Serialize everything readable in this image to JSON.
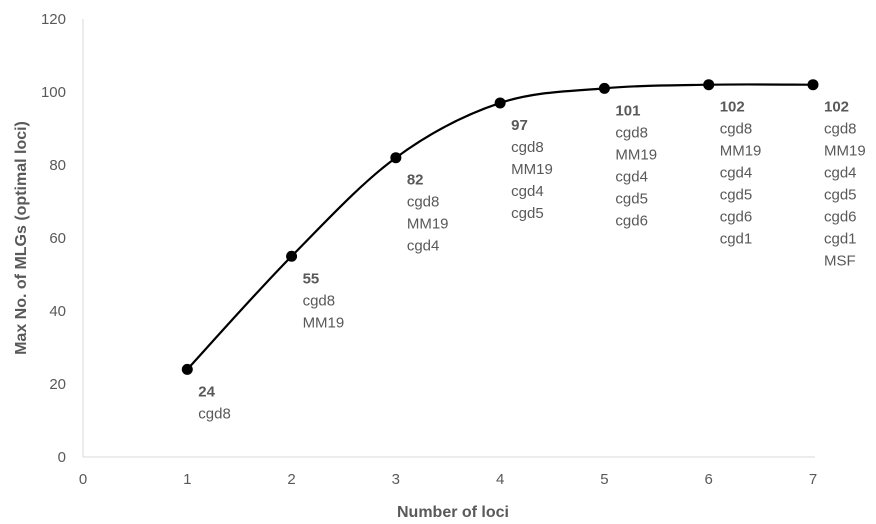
{
  "chart_data": {
    "type": "line",
    "title": "",
    "xlabel": "Number of loci",
    "ylabel": "Max No. of MLGs (optimal loci)",
    "xlim": [
      0,
      7
    ],
    "ylim": [
      0,
      120
    ],
    "x_ticks": [
      "0",
      "1",
      "2",
      "3",
      "4",
      "5",
      "6",
      "7"
    ],
    "y_ticks": [
      "0",
      "20",
      "40",
      "60",
      "80",
      "100",
      "120"
    ],
    "grid": false,
    "legend": "none",
    "smooth": true,
    "line_color": "#000000",
    "text_color": "#595959",
    "axis_color": "#d9d9d9",
    "series": [
      {
        "x": [
          1,
          2,
          3,
          4,
          5,
          6,
          7
        ],
        "values": [
          24,
          55,
          82,
          97,
          101,
          102,
          102
        ]
      }
    ],
    "data_labels": [
      {
        "value": "24",
        "loci": [
          "cgd8"
        ]
      },
      {
        "value": "55",
        "loci": [
          "cgd8",
          "MM19"
        ]
      },
      {
        "value": "82",
        "loci": [
          "cgd8",
          "MM19",
          "cgd4"
        ]
      },
      {
        "value": "97",
        "loci": [
          "cgd8",
          "MM19",
          "cgd4",
          "cgd5"
        ]
      },
      {
        "value": "101",
        "loci": [
          "cgd8",
          "MM19",
          "cgd4",
          "cgd5",
          "cgd6"
        ]
      },
      {
        "value": "102",
        "loci": [
          "cgd8",
          "MM19",
          "cgd4",
          "cgd5",
          "cgd6",
          "cgd1"
        ]
      },
      {
        "value": "102",
        "loci": [
          "cgd8",
          "MM19",
          "cgd4",
          "cgd5",
          "cgd6",
          "cgd1",
          "MSF"
        ]
      }
    ]
  }
}
